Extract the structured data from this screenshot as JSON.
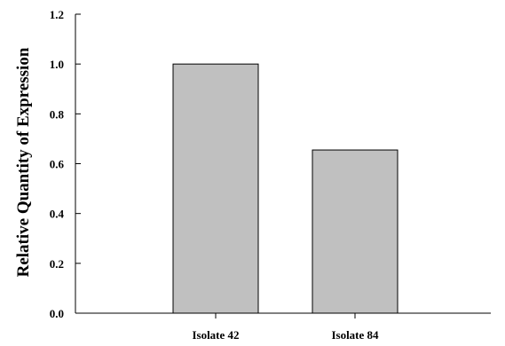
{
  "chart_data": {
    "type": "bar",
    "title": "",
    "xlabel": "",
    "ylabel": "Relative Quantity of Expression",
    "categories": [
      "Isolate 42",
      "Isolate 84"
    ],
    "values": [
      1.0,
      0.655
    ],
    "ylim": [
      0,
      1.2
    ],
    "yticks": [
      "0.0",
      "0.2",
      "0.4",
      "0.6",
      "0.8",
      "1.0",
      "1.2"
    ],
    "grid": false,
    "legend": "none",
    "bar_color": "#c0c0c0",
    "bar_edge_color": "#000000"
  }
}
